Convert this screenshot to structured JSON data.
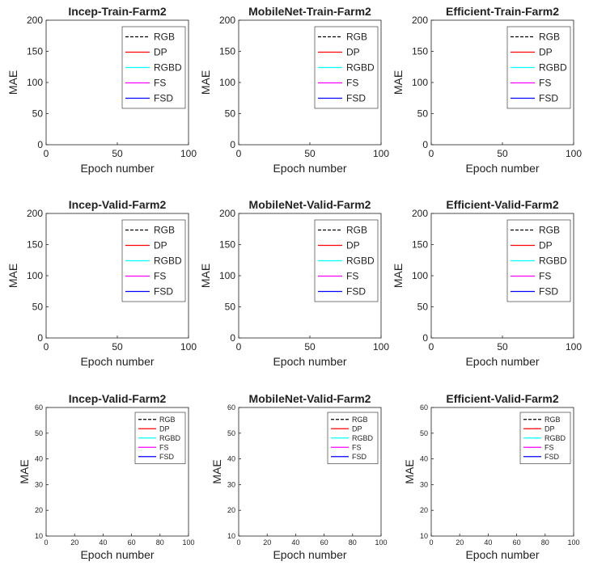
{
  "chart_data": [
    {
      "type": "line",
      "title": "Incep-Train-Farm2",
      "xlabel": "Epoch number",
      "ylabel": "MAE",
      "xlim": [
        0,
        100
      ],
      "ylim": [
        0,
        200
      ],
      "xticks": [
        0,
        50,
        100
      ],
      "yticks": [
        0,
        50,
        100,
        150,
        200
      ],
      "small": false,
      "x0": 8,
      "base": 6,
      "plateau": 25,
      "decay": 8.5,
      "noise": 1.5,
      "knee": 20,
      "series": [
        {
          "name": "RGB",
          "color": "#000000",
          "dash": "4,2",
          "seed": 1
        },
        {
          "name": "DP",
          "color": "#ff0000",
          "seed": 2
        },
        {
          "name": "RGBD",
          "color": "#00ffff",
          "seed": 3
        },
        {
          "name": "FS",
          "color": "#ff00ff",
          "seed": 4
        },
        {
          "name": "FSD",
          "color": "#0000ff",
          "seed": 5
        }
      ]
    },
    {
      "type": "line",
      "title": "MobileNet-Train-Farm2",
      "xlabel": "Epoch number",
      "ylabel": "MAE",
      "xlim": [
        0,
        100
      ],
      "ylim": [
        0,
        200
      ],
      "xticks": [
        0,
        50,
        100
      ],
      "yticks": [
        0,
        50,
        100,
        150,
        200
      ],
      "small": false,
      "x0": 5,
      "base": 6,
      "plateau": 22,
      "decay": 5.5,
      "noise": 1.3,
      "knee": 15,
      "series": [
        {
          "name": "RGB",
          "color": "#000000",
          "dash": "4,2",
          "seed": 6
        },
        {
          "name": "DP",
          "color": "#ff0000",
          "seed": 7
        },
        {
          "name": "RGBD",
          "color": "#00ffff",
          "seed": 8
        },
        {
          "name": "FS",
          "color": "#ff00ff",
          "seed": 9
        },
        {
          "name": "FSD",
          "color": "#0000ff",
          "seed": 10
        }
      ]
    },
    {
      "type": "line",
      "title": "Efficient-Train-Farm2",
      "xlabel": "Epoch number",
      "ylabel": "MAE",
      "xlim": [
        0,
        100
      ],
      "ylim": [
        0,
        200
      ],
      "xticks": [
        0,
        50,
        100
      ],
      "yticks": [
        0,
        50,
        100,
        150,
        200
      ],
      "small": false,
      "x0": 8,
      "base": 9,
      "plateau": 24,
      "decay": 7.5,
      "noise": 1.5,
      "knee": 20,
      "series": [
        {
          "name": "RGB",
          "color": "#000000",
          "dash": "4,2",
          "seed": 11
        },
        {
          "name": "DP",
          "color": "#ff0000",
          "seed": 12
        },
        {
          "name": "RGBD",
          "color": "#00ffff",
          "seed": 13
        },
        {
          "name": "FS",
          "color": "#ff00ff",
          "seed": 14
        },
        {
          "name": "FSD",
          "color": "#0000ff",
          "seed": 15
        }
      ]
    },
    {
      "type": "line",
      "title": "Incep-Valid-Farm2",
      "xlabel": "Epoch number",
      "ylabel": "MAE",
      "xlim": [
        0,
        100
      ],
      "ylim": [
        0,
        200
      ],
      "xticks": [
        0,
        50,
        100
      ],
      "yticks": [
        0,
        50,
        100,
        150,
        200
      ],
      "small": false,
      "x0": 6,
      "base": 17,
      "plateau": 20,
      "decay": 5,
      "noise": 6,
      "knee": 15,
      "series": [
        {
          "name": "RGB",
          "color": "#000000",
          "dash": "4,2",
          "seed": 16
        },
        {
          "name": "DP",
          "color": "#ff0000",
          "seed": 17
        },
        {
          "name": "RGBD",
          "color": "#00ffff",
          "seed": 18
        },
        {
          "name": "FS",
          "color": "#ff00ff",
          "seed": 19
        },
        {
          "name": "FSD",
          "color": "#0000ff",
          "seed": 20
        }
      ]
    },
    {
      "type": "line",
      "title": "MobileNet-Valid-Farm2",
      "xlabel": "Epoch number",
      "ylabel": "MAE",
      "xlim": [
        0,
        100
      ],
      "ylim": [
        0,
        200
      ],
      "xticks": [
        0,
        50,
        100
      ],
      "yticks": [
        0,
        50,
        100,
        150,
        200
      ],
      "small": false,
      "x0": 5,
      "base": 16,
      "plateau": 20,
      "decay": 3.2,
      "noise": 3,
      "knee": 10,
      "series": [
        {
          "name": "RGB",
          "color": "#000000",
          "dash": "4,2",
          "seed": 21
        },
        {
          "name": "DP",
          "color": "#ff0000",
          "seed": 22
        },
        {
          "name": "RGBD",
          "color": "#00ffff",
          "seed": 23
        },
        {
          "name": "FS",
          "color": "#ff00ff",
          "seed": 24
        },
        {
          "name": "FSD",
          "color": "#0000ff",
          "seed": 25
        }
      ]
    },
    {
      "type": "line",
      "title": "Efficient-Valid-Farm2",
      "xlabel": "Epoch number",
      "ylabel": "MAE",
      "xlim": [
        0,
        100
      ],
      "ylim": [
        0,
        200
      ],
      "xticks": [
        0,
        50,
        100
      ],
      "yticks": [
        0,
        50,
        100,
        150,
        200
      ],
      "small": false,
      "x0": 9,
      "base": 16,
      "plateau": 20,
      "decay": 3.5,
      "noise": 5,
      "knee": 15,
      "series": [
        {
          "name": "RGB",
          "color": "#000000",
          "dash": "4,2",
          "seed": 26
        },
        {
          "name": "DP",
          "color": "#ff0000",
          "seed": 27
        },
        {
          "name": "RGBD",
          "color": "#00ffff",
          "seed": 28
        },
        {
          "name": "FS",
          "color": "#ff00ff",
          "seed": 29
        },
        {
          "name": "FSD",
          "color": "#0000ff",
          "seed": 30
        }
      ]
    },
    {
      "type": "line",
      "title": "Incep-Valid-Farm2",
      "xlabel": "Epoch number",
      "ylabel": "MAE",
      "xlim": [
        0,
        100
      ],
      "ylim": [
        10,
        60
      ],
      "xticks": [
        0,
        20,
        40,
        60,
        80,
        100
      ],
      "yticks": [
        10,
        20,
        30,
        40,
        50,
        60
      ],
      "small": true,
      "x0": 11,
      "base": 17,
      "plateau": 16,
      "decay": 6,
      "noise": 5,
      "knee": 15,
      "series": [
        {
          "name": "RGB",
          "color": "#000000",
          "dash": "4,2",
          "seed": 31
        },
        {
          "name": "DP",
          "color": "#ff0000",
          "seed": 32
        },
        {
          "name": "RGBD",
          "color": "#00ffff",
          "seed": 33
        },
        {
          "name": "FS",
          "color": "#ff00ff",
          "seed": 34
        },
        {
          "name": "FSD",
          "color": "#0000ff",
          "seed": 35
        }
      ]
    },
    {
      "type": "line",
      "title": "MobileNet-Valid-Farm2",
      "xlabel": "Epoch number",
      "ylabel": "MAE",
      "xlim": [
        0,
        100
      ],
      "ylim": [
        10,
        60
      ],
      "xticks": [
        0,
        20,
        40,
        60,
        80,
        100
      ],
      "yticks": [
        10,
        20,
        30,
        40,
        50,
        60
      ],
      "small": true,
      "x0": 6,
      "base": 16,
      "plateau": 20,
      "decay": 4,
      "noise": 3,
      "knee": 12,
      "series": [
        {
          "name": "RGB",
          "color": "#000000",
          "dash": "4,2",
          "seed": 36
        },
        {
          "name": "DP",
          "color": "#ff0000",
          "seed": 37
        },
        {
          "name": "RGBD",
          "color": "#00ffff",
          "seed": 38
        },
        {
          "name": "FS",
          "color": "#ff00ff",
          "seed": 39
        },
        {
          "name": "FSD",
          "color": "#0000ff",
          "seed": 40
        }
      ]
    },
    {
      "type": "line",
      "title": "Efficient-Valid-Farm2",
      "xlabel": "Epoch number",
      "ylabel": "MAE",
      "xlim": [
        0,
        100
      ],
      "ylim": [
        10,
        60
      ],
      "xticks": [
        0,
        20,
        40,
        60,
        80,
        100
      ],
      "yticks": [
        10,
        20,
        30,
        40,
        50,
        60
      ],
      "small": true,
      "x0": 11,
      "base": 16,
      "plateau": 20,
      "decay": 4,
      "noise": 5,
      "knee": 15,
      "series": [
        {
          "name": "RGB",
          "color": "#000000",
          "dash": "4,2",
          "seed": 41
        },
        {
          "name": "DP",
          "color": "#ff0000",
          "seed": 42
        },
        {
          "name": "RGBD",
          "color": "#00ffff",
          "seed": 43
        },
        {
          "name": "FS",
          "color": "#ff00ff",
          "seed": 44
        },
        {
          "name": "FSD",
          "color": "#0000ff",
          "seed": 45
        }
      ]
    }
  ]
}
